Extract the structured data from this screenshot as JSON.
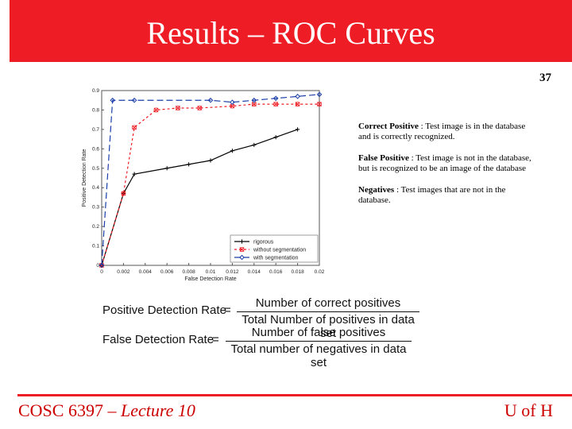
{
  "slide": {
    "title": "Results – ROC Curves",
    "number": "37"
  },
  "definitions": [
    {
      "term": "Correct Positive",
      "text": " : Test image is in the database and is correctly recognized."
    },
    {
      "term": "False Positive",
      "text": " : Test image is not in the database, but is recognized to be an image of the database"
    },
    {
      "term": "Negatives",
      "text": " : Test images that are not in the database."
    }
  ],
  "formulas": {
    "positive": {
      "lhs": "Positive Detection Rate",
      "eq": "=",
      "numerator": "Number of correct positives",
      "denominator": "Total Number of positives in data set"
    },
    "false": {
      "lhs": "False Detection Rate",
      "eq": "=",
      "numerator": "Number of false positives",
      "denominator": "Total number of negatives in data set"
    }
  },
  "footer": {
    "course": "COSC 6397 – ",
    "lecture": "Lecture 10",
    "org": "U of H"
  },
  "chart_data": {
    "type": "line",
    "title": "",
    "xlabel": "False Detection Rate",
    "ylabel": "Positive Detection Rate",
    "xlim": [
      0,
      0.02
    ],
    "ylim": [
      0,
      0.9
    ],
    "xticks": [
      "0",
      "0.002",
      "0.004",
      "0.006",
      "0.008",
      "0.01",
      "0.012",
      "0.014",
      "0.016",
      "0.018",
      "0.02"
    ],
    "yticks": [
      "0",
      "0.1",
      "0.2",
      "0.3",
      "0.4",
      "0.5",
      "0.6",
      "0.7",
      "0.8",
      "0.9"
    ],
    "legend_position": "bottom-right",
    "series": [
      {
        "name": "rigorous",
        "color": "#000000",
        "dash": "",
        "marker": "plus",
        "points": [
          [
            0,
            0
          ],
          [
            0.002,
            0.37
          ],
          [
            0.003,
            0.47
          ],
          [
            0.006,
            0.5
          ],
          [
            0.008,
            0.52
          ],
          [
            0.01,
            0.54
          ],
          [
            0.012,
            0.59
          ],
          [
            0.014,
            0.62
          ],
          [
            0.016,
            0.66
          ],
          [
            0.018,
            0.7
          ]
        ]
      },
      {
        "name": "without segmentation",
        "color": "#ee1c24",
        "dash": "3,3",
        "marker": "cross",
        "points": [
          [
            0,
            0
          ],
          [
            0.002,
            0.37
          ],
          [
            0.003,
            0.71
          ],
          [
            0.005,
            0.8
          ],
          [
            0.007,
            0.81
          ],
          [
            0.009,
            0.81
          ],
          [
            0.012,
            0.82
          ],
          [
            0.014,
            0.83
          ],
          [
            0.016,
            0.83
          ],
          [
            0.018,
            0.83
          ],
          [
            0.02,
            0.83
          ]
        ]
      },
      {
        "name": "with segmentation",
        "color": "#1a3ea8",
        "dash": "8,4",
        "marker": "diamond",
        "points": [
          [
            0,
            0
          ],
          [
            0.001,
            0.85
          ],
          [
            0.003,
            0.85
          ],
          [
            0.01,
            0.85
          ],
          [
            0.012,
            0.84
          ],
          [
            0.014,
            0.85
          ],
          [
            0.016,
            0.86
          ],
          [
            0.018,
            0.87
          ],
          [
            0.02,
            0.88
          ]
        ]
      }
    ]
  }
}
